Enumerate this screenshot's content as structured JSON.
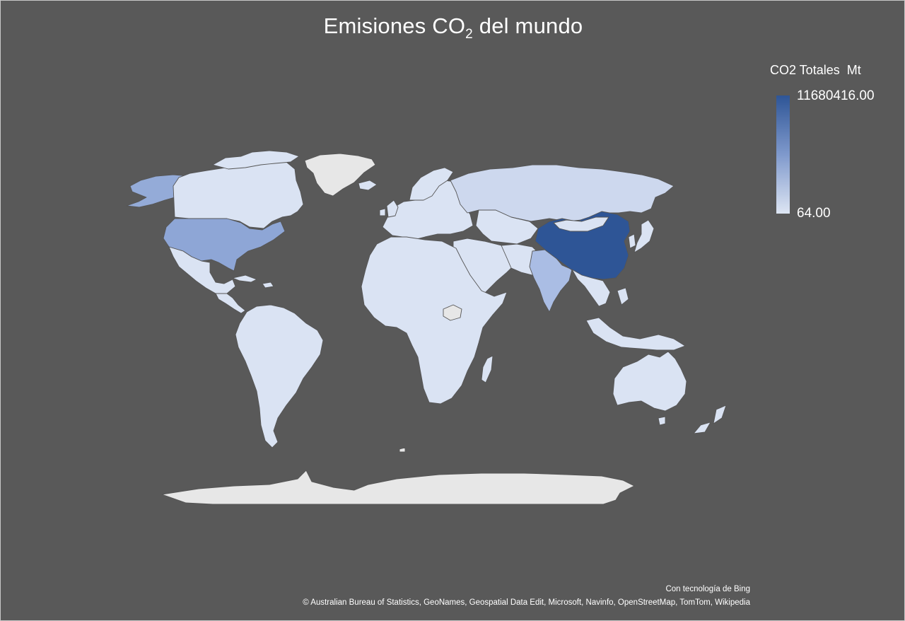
{
  "title": {
    "main": "Emisiones CO",
    "subscript": "2",
    "suffix": " del mundo"
  },
  "legend": {
    "title": "CO2 Totales  Mt",
    "max_label": "11680416.00",
    "min_label": "64.00",
    "max_value": 11680416.0,
    "min_value": 64.0,
    "color_high": "#2e5596",
    "color_low": "#dde5f3"
  },
  "colors": {
    "background": "#595959",
    "country_low": "#dae3f3",
    "country_mid": "#cdd8ee",
    "usa": "#8ea6d6",
    "india": "#aabde4",
    "alaska": "#94abd8",
    "china": "#2e5596",
    "no_data": "#e7e7e7",
    "border": "#555555"
  },
  "credits": {
    "line1": "Con tecnología de Bing",
    "line2": "© Australian Bureau of Statistics, GeoNames, Geospatial Data Edit, Microsoft, Navinfo, OpenStreetMap, TomTom, Wikipedia"
  }
}
